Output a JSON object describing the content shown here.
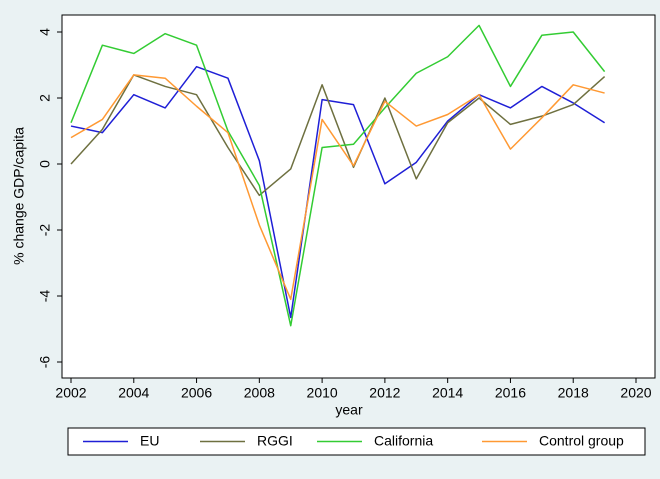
{
  "chart_data": {
    "type": "line",
    "x_label": "year",
    "y_label": "% change GDP/capita",
    "x": [
      2002,
      2003,
      2004,
      2005,
      2006,
      2007,
      2008,
      2009,
      2010,
      2011,
      2012,
      2013,
      2014,
      2015,
      2016,
      2017,
      2018,
      2019
    ],
    "series": [
      {
        "name": "EU",
        "color": "#1f1fd6",
        "values": [
          1.15,
          0.95,
          2.1,
          1.7,
          2.95,
          2.6,
          0.1,
          -4.65,
          1.95,
          1.8,
          -0.6,
          0.05,
          1.3,
          2.1,
          1.7,
          2.35,
          1.85,
          1.25
        ]
      },
      {
        "name": "RGGI",
        "color": "#6e7040",
        "values": [
          0,
          1.05,
          2.7,
          2.35,
          2.1,
          0.5,
          -0.95,
          -0.15,
          2.4,
          -0.1,
          2.0,
          -0.45,
          1.25,
          2.0,
          1.2,
          1.45,
          1.8,
          2.65
        ]
      },
      {
        "name": "California",
        "color": "#33cc33",
        "values": [
          1.25,
          3.6,
          3.35,
          3.95,
          3.6,
          1.0,
          -0.65,
          -4.9,
          0.5,
          0.6,
          1.7,
          2.75,
          3.25,
          4.2,
          2.35,
          3.9,
          4.0,
          2.8
        ]
      },
      {
        "name": "Control group",
        "color": "#ff9933",
        "values": [
          0.8,
          1.35,
          2.7,
          2.6,
          1.75,
          0.95,
          -1.85,
          -4.1,
          1.35,
          -0.05,
          1.9,
          1.15,
          1.5,
          2.1,
          0.45,
          1.4,
          2.4,
          2.15
        ]
      }
    ],
    "xlim": [
      2002,
      2020
    ],
    "xticks": [
      2002,
      2004,
      2006,
      2008,
      2010,
      2012,
      2014,
      2016,
      2018,
      2020
    ],
    "ylim": [
      -6,
      4
    ],
    "yticks": [
      -6,
      -4,
      -2,
      0,
      2,
      4
    ],
    "grid": false,
    "legend": "bottom"
  }
}
